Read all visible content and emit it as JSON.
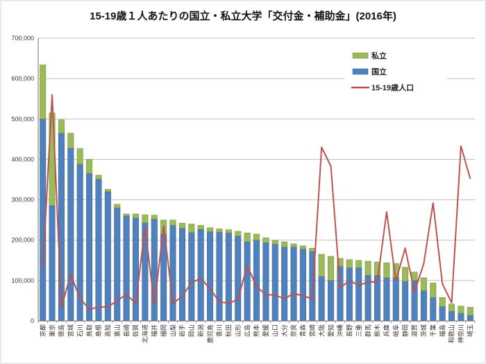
{
  "page": {
    "background": "#ffffff"
  },
  "chart_data": {
    "type": "bar",
    "subtype": "stacked-bar-with-line",
    "title": "15-19歳１人あたりの国立・私立大学「交付金・補助金」(2016年)",
    "xlabel": "",
    "ylabel": "",
    "ylim": [
      0,
      700000
    ],
    "ytick_step": 100000,
    "ytick_labels": [
      "0",
      "100,000",
      "200,000",
      "300,000",
      "400,000",
      "500,000",
      "600,000",
      "700,000"
    ],
    "grid": true,
    "legend_position": "top-right",
    "categories": [
      "京都",
      "東京",
      "徳島",
      "宮城",
      "石川",
      "鳥取",
      "島根",
      "高知",
      "富山",
      "長崎",
      "佐賀",
      "北海道",
      "福井",
      "福岡",
      "山梨",
      "岩手",
      "岡山",
      "新潟",
      "鹿児島",
      "香川",
      "秋田",
      "山形",
      "広島",
      "熊本",
      "愛媛",
      "山口",
      "大分",
      "奈良",
      "青森",
      "宮崎",
      "大阪",
      "愛知",
      "沖縄",
      "長野",
      "三重",
      "群馬",
      "栃木",
      "兵庫",
      "岐阜",
      "静岡",
      "滋賀",
      "茨城",
      "千葉",
      "福島",
      "和歌山",
      "神奈川",
      "埼玉"
    ],
    "series": [
      {
        "name": "私立",
        "type": "bar",
        "stack_level": "top",
        "color": "#9BBB59",
        "border_color": "#71893F",
        "values": [
          134000,
          229000,
          33000,
          37000,
          39000,
          35000,
          10000,
          6000,
          9000,
          5000,
          10000,
          20000,
          10000,
          35000,
          13000,
          12000,
          21000,
          10000,
          10000,
          8000,
          8000,
          12000,
          22000,
          15000,
          12000,
          10000,
          13000,
          8000,
          8000,
          8000,
          55000,
          60000,
          20000,
          20000,
          18000,
          35000,
          33000,
          37000,
          35000,
          35000,
          21000,
          32000,
          36000,
          22000,
          18000,
          18000,
          20000
        ]
      },
      {
        "name": "国立",
        "type": "bar",
        "stack_level": "bottom",
        "color": "#4F81BD",
        "border_color": "#37598C",
        "values": [
          500000,
          286000,
          465000,
          428000,
          388000,
          365000,
          351000,
          320000,
          280000,
          260000,
          255000,
          243000,
          252000,
          215000,
          237000,
          230000,
          219000,
          227000,
          221000,
          220000,
          218000,
          210000,
          196000,
          200000,
          194000,
          190000,
          183000,
          183000,
          178000,
          172000,
          110000,
          100000,
          135000,
          132000,
          132000,
          113000,
          113000,
          107000,
          107000,
          98000,
          100000,
          75000,
          58000,
          36000,
          24000,
          19000,
          14000
        ]
      },
      {
        "name": "15-19歳人口",
        "type": "line",
        "color": "#C0504D",
        "values": [
          130000,
          560000,
          34000,
          115000,
          56000,
          29000,
          34000,
          35000,
          50000,
          66000,
          43000,
          232000,
          40000,
          235000,
          43000,
          61000,
          95000,
          105000,
          80000,
          47000,
          44000,
          53000,
          137000,
          85000,
          65000,
          64000,
          55000,
          68000,
          62000,
          55000,
          430000,
          383000,
          82000,
          100000,
          88000,
          96000,
          97000,
          270000,
          99000,
          180000,
          72000,
          142000,
          292000,
          92000,
          45000,
          433000,
          352000
        ]
      }
    ],
    "colors": {
      "gridline": "#BFBFBF",
      "axis": "#6E6E6E",
      "tick_label": "#333333",
      "title": "#111111"
    }
  }
}
